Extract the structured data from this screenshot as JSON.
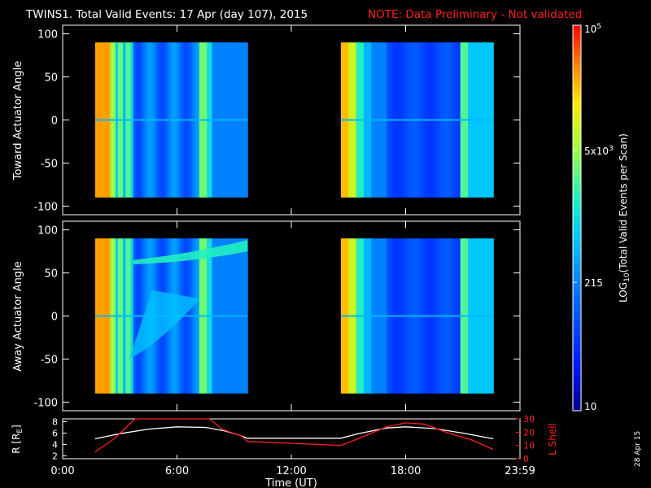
{
  "header": {
    "title": "TWINS1. Total Valid Events: 17 Apr (day 107), 2015",
    "note": "NOTE: Data Preliminary - Not validated"
  },
  "footer": {
    "date_stamp": "28 Apr 15"
  },
  "chart_data": [
    {
      "type": "heatmap",
      "name": "toward",
      "ylabel": "Toward Actuator Angle",
      "ylim": [
        -110,
        110
      ],
      "yticks": [
        100,
        50,
        0,
        -50,
        -100
      ],
      "data_x_ranges_hours": [
        [
          1.7,
          9.7
        ],
        [
          14.6,
          22.6
        ]
      ],
      "data_y_range": [
        -90,
        90
      ]
    },
    {
      "type": "heatmap",
      "name": "away",
      "ylabel": "Away Actuator Angle",
      "ylim": [
        -110,
        110
      ],
      "yticks": [
        100,
        50,
        0,
        -50,
        -100
      ],
      "data_x_ranges_hours": [
        [
          1.7,
          9.7
        ],
        [
          14.6,
          22.6
        ]
      ],
      "data_y_range": [
        -90,
        90
      ]
    },
    {
      "type": "line",
      "name": "orbit",
      "ylabel_left": "R [R",
      "ylabel_left_sub": "E",
      "ylabel_left_close": "]",
      "ylabel_right": "L Shell",
      "yticks_left": [
        "8",
        "6",
        "4",
        "2"
      ],
      "yticks_right": [
        "30",
        "20",
        "10",
        "0"
      ],
      "ylim_left": [
        1.5,
        8.5
      ],
      "ylim_right": [
        0,
        30
      ],
      "series": [
        {
          "color": "#ffffff",
          "x": [
            1.7,
            3,
            4.5,
            6,
            7.5,
            8.5,
            9.3,
            9.7,
            14.6,
            15.5,
            17,
            18,
            19.5,
            21,
            22.6
          ],
          "y": [
            5,
            5.9,
            6.7,
            7.1,
            7.0,
            6.4,
            5.6,
            5.1,
            5.1,
            5.9,
            6.9,
            7.1,
            6.8,
            6.0,
            5.0
          ]
        },
        {
          "color": "#ff2020",
          "x": [
            1.7,
            2.7,
            3.8,
            7.7,
            8.4,
            9.4,
            9.7,
            14.6,
            15.5,
            17,
            18,
            19,
            20.3,
            21.5,
            22.6
          ],
          "y": [
            5,
            15,
            31,
            31,
            22,
            17,
            13,
            10,
            15,
            24,
            27,
            26,
            19,
            14,
            7
          ]
        }
      ]
    }
  ],
  "xaxis": {
    "label": "Time (UT)",
    "ticks": [
      {
        "hour": 0,
        "label": "0:00"
      },
      {
        "hour": 6,
        "label": "6:00"
      },
      {
        "hour": 12,
        "label": "12:00"
      },
      {
        "hour": 18,
        "label": "18:00"
      },
      {
        "hour": 24,
        "label": "23:59"
      }
    ]
  },
  "colorbar": {
    "label_prefix": "LOG",
    "label_sub": "10",
    "label_suffix": "(Total Valid Events per Scan)",
    "ticks": [
      {
        "value": 100000,
        "base": "10",
        "exp": "5",
        "style": "power"
      },
      {
        "value": 5000,
        "base": "5x10",
        "exp": "3",
        "style": "power"
      },
      {
        "value": 215,
        "label": "215",
        "style": "plain"
      },
      {
        "value": 10,
        "label": "10",
        "style": "plain"
      }
    ],
    "range": [
      10,
      100000
    ]
  }
}
